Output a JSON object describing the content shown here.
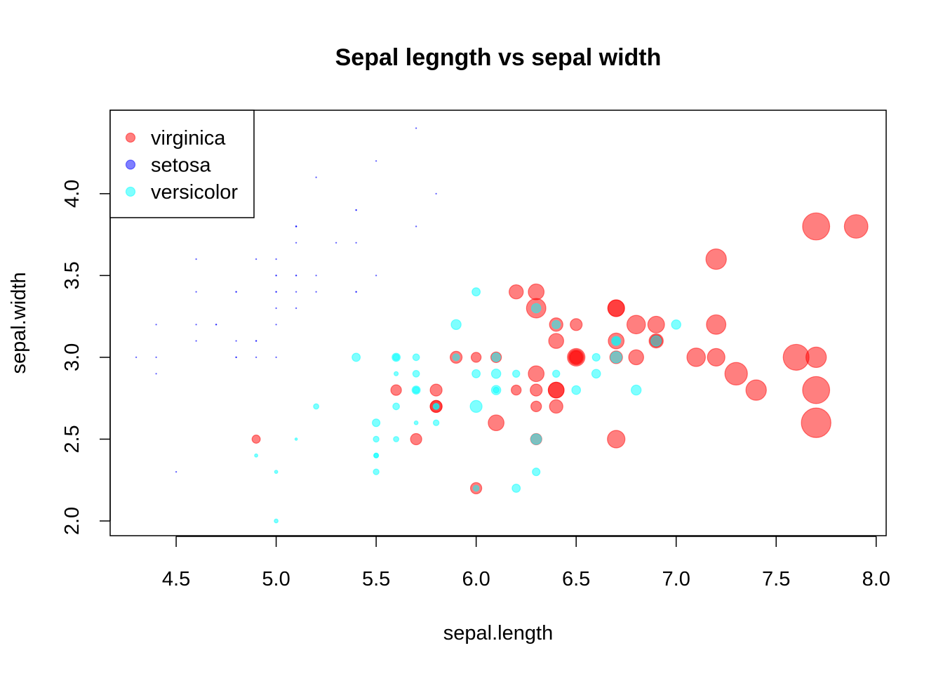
{
  "chart_data": {
    "type": "scatter",
    "title": "Sepal legngth vs sepal width",
    "xlabel": "sepal.length",
    "ylabel": "sepal.width",
    "xlim": [
      4.17,
      8.05
    ],
    "ylim": [
      1.91,
      4.51
    ],
    "xticks": [
      "4.5",
      "5.0",
      "5.5",
      "6.0",
      "6.5",
      "7.0",
      "7.5",
      "8.0"
    ],
    "yticks": [
      "2.0",
      "2.5",
      "3.0",
      "3.5",
      "4.0"
    ],
    "grid": false,
    "legend_position": "top-left",
    "point_size_note": "point size scales with petal size",
    "series": [
      {
        "name": "virginica",
        "color": "#ff0000",
        "opacity": 0.5,
        "points": [
          [
            6.3,
            3.3,
            6.0
          ],
          [
            5.8,
            2.7,
            5.1
          ],
          [
            7.1,
            3.0,
            5.9
          ],
          [
            6.3,
            2.9,
            5.6
          ],
          [
            6.5,
            3.0,
            5.8
          ],
          [
            7.6,
            3.0,
            6.6
          ],
          [
            4.9,
            2.5,
            4.5
          ],
          [
            7.3,
            2.9,
            6.3
          ],
          [
            6.7,
            2.5,
            5.8
          ],
          [
            7.2,
            3.6,
            6.1
          ],
          [
            6.5,
            3.2,
            5.1
          ],
          [
            6.4,
            2.7,
            5.3
          ],
          [
            6.8,
            3.0,
            5.5
          ],
          [
            5.7,
            2.5,
            5.0
          ],
          [
            5.8,
            2.8,
            5.1
          ],
          [
            6.4,
            3.2,
            5.3
          ],
          [
            6.5,
            3.0,
            5.5
          ],
          [
            7.7,
            3.8,
            6.7
          ],
          [
            7.7,
            2.6,
            6.9
          ],
          [
            6.0,
            2.2,
            5.0
          ],
          [
            6.9,
            3.2,
            5.7
          ],
          [
            5.6,
            2.8,
            4.9
          ],
          [
            7.7,
            2.8,
            6.7
          ],
          [
            6.3,
            2.7,
            4.9
          ],
          [
            6.7,
            3.3,
            5.7
          ],
          [
            7.2,
            3.2,
            6.0
          ],
          [
            6.2,
            2.8,
            4.8
          ],
          [
            6.1,
            3.0,
            4.9
          ],
          [
            6.4,
            2.8,
            5.6
          ],
          [
            7.2,
            3.0,
            5.8
          ],
          [
            7.4,
            2.8,
            6.1
          ],
          [
            7.9,
            3.8,
            6.4
          ],
          [
            6.4,
            2.8,
            5.6
          ],
          [
            6.3,
            2.8,
            5.1
          ],
          [
            6.1,
            2.6,
            5.6
          ],
          [
            7.7,
            3.0,
            6.1
          ],
          [
            6.3,
            3.4,
            5.6
          ],
          [
            6.4,
            3.1,
            5.5
          ],
          [
            6.0,
            3.0,
            4.8
          ],
          [
            6.9,
            3.1,
            5.4
          ],
          [
            6.7,
            3.1,
            5.6
          ],
          [
            6.9,
            3.1,
            5.1
          ],
          [
            5.8,
            2.7,
            5.1
          ],
          [
            6.8,
            3.2,
            5.9
          ],
          [
            6.7,
            3.3,
            5.7
          ],
          [
            6.7,
            3.0,
            5.2
          ],
          [
            6.3,
            2.5,
            5.0
          ],
          [
            6.5,
            3.0,
            5.2
          ],
          [
            6.2,
            3.4,
            5.4
          ],
          [
            5.9,
            3.0,
            5.1
          ]
        ]
      },
      {
        "name": "setosa",
        "color": "#0000ff",
        "opacity": 0.5,
        "points": [
          [
            5.1,
            3.5,
            1.4
          ],
          [
            4.9,
            3.0,
            1.4
          ],
          [
            4.7,
            3.2,
            1.3
          ],
          [
            4.6,
            3.1,
            1.5
          ],
          [
            5.0,
            3.6,
            1.4
          ],
          [
            5.4,
            3.9,
            1.7
          ],
          [
            4.6,
            3.4,
            1.4
          ],
          [
            5.0,
            3.4,
            1.5
          ],
          [
            4.4,
            2.9,
            1.4
          ],
          [
            4.9,
            3.1,
            1.5
          ],
          [
            5.4,
            3.7,
            1.5
          ],
          [
            4.8,
            3.4,
            1.6
          ],
          [
            4.8,
            3.0,
            1.4
          ],
          [
            4.3,
            3.0,
            1.1
          ],
          [
            5.8,
            4.0,
            1.2
          ],
          [
            5.7,
            4.4,
            1.5
          ],
          [
            5.4,
            3.9,
            1.3
          ],
          [
            5.1,
            3.5,
            1.4
          ],
          [
            5.7,
            3.8,
            1.7
          ],
          [
            5.1,
            3.8,
            1.5
          ],
          [
            5.4,
            3.4,
            1.7
          ],
          [
            5.1,
            3.7,
            1.5
          ],
          [
            4.6,
            3.6,
            1.0
          ],
          [
            5.1,
            3.3,
            1.7
          ],
          [
            4.8,
            3.4,
            1.9
          ],
          [
            5.0,
            3.0,
            1.6
          ],
          [
            5.0,
            3.4,
            1.6
          ],
          [
            5.2,
            3.5,
            1.5
          ],
          [
            5.2,
            3.4,
            1.4
          ],
          [
            4.7,
            3.2,
            1.6
          ],
          [
            4.8,
            3.1,
            1.6
          ],
          [
            5.4,
            3.4,
            1.5
          ],
          [
            5.2,
            4.1,
            1.5
          ],
          [
            5.5,
            4.2,
            1.4
          ],
          [
            4.9,
            3.1,
            1.5
          ],
          [
            5.0,
            3.2,
            1.2
          ],
          [
            5.5,
            3.5,
            1.3
          ],
          [
            4.9,
            3.6,
            1.4
          ],
          [
            4.4,
            3.0,
            1.3
          ],
          [
            5.1,
            3.4,
            1.5
          ],
          [
            5.0,
            3.5,
            1.3
          ],
          [
            4.5,
            2.3,
            1.3
          ],
          [
            4.4,
            3.2,
            1.3
          ],
          [
            5.0,
            3.5,
            1.6
          ],
          [
            5.1,
            3.8,
            1.9
          ],
          [
            4.8,
            3.0,
            1.4
          ],
          [
            5.1,
            3.8,
            1.6
          ],
          [
            4.6,
            3.2,
            1.4
          ],
          [
            5.3,
            3.7,
            1.5
          ],
          [
            5.0,
            3.3,
            1.4
          ]
        ]
      },
      {
        "name": "versicolor",
        "color": "#00ffff",
        "opacity": 0.5,
        "points": [
          [
            7.0,
            3.2,
            4.7
          ],
          [
            6.4,
            3.2,
            4.5
          ],
          [
            6.9,
            3.1,
            4.9
          ],
          [
            5.5,
            2.3,
            4.0
          ],
          [
            6.5,
            2.8,
            4.6
          ],
          [
            5.7,
            2.8,
            4.5
          ],
          [
            6.3,
            3.3,
            4.7
          ],
          [
            4.9,
            2.4,
            3.3
          ],
          [
            6.6,
            2.9,
            4.6
          ],
          [
            5.2,
            2.7,
            3.9
          ],
          [
            5.0,
            2.0,
            3.5
          ],
          [
            5.9,
            3.0,
            4.2
          ],
          [
            6.0,
            2.2,
            4.0
          ],
          [
            6.1,
            2.9,
            4.7
          ],
          [
            5.6,
            2.9,
            3.6
          ],
          [
            6.7,
            3.1,
            4.4
          ],
          [
            5.6,
            3.0,
            4.5
          ],
          [
            5.8,
            2.7,
            4.1
          ],
          [
            6.2,
            2.2,
            4.5
          ],
          [
            5.6,
            2.5,
            3.9
          ],
          [
            5.9,
            3.2,
            4.8
          ],
          [
            6.1,
            2.8,
            4.0
          ],
          [
            6.3,
            2.5,
            4.9
          ],
          [
            6.1,
            2.8,
            4.7
          ],
          [
            6.4,
            2.9,
            4.3
          ],
          [
            6.6,
            3.0,
            4.4
          ],
          [
            6.8,
            2.8,
            4.8
          ],
          [
            6.7,
            3.0,
            5.0
          ],
          [
            6.0,
            2.9,
            4.5
          ],
          [
            5.7,
            2.6,
            3.5
          ],
          [
            5.5,
            2.4,
            3.8
          ],
          [
            5.5,
            2.4,
            3.7
          ],
          [
            5.8,
            2.7,
            3.9
          ],
          [
            6.0,
            2.7,
            5.1
          ],
          [
            5.4,
            3.0,
            4.5
          ],
          [
            6.0,
            3.4,
            4.5
          ],
          [
            6.7,
            3.1,
            4.7
          ],
          [
            6.3,
            2.3,
            4.4
          ],
          [
            5.6,
            3.0,
            4.1
          ],
          [
            5.5,
            2.5,
            4.0
          ],
          [
            5.5,
            2.6,
            4.4
          ],
          [
            6.1,
            3.0,
            4.6
          ],
          [
            5.8,
            2.6,
            4.0
          ],
          [
            5.0,
            2.3,
            3.3
          ],
          [
            5.6,
            2.7,
            4.2
          ],
          [
            5.7,
            3.0,
            4.2
          ],
          [
            5.7,
            2.9,
            4.2
          ],
          [
            6.2,
            2.9,
            4.3
          ],
          [
            5.1,
            2.5,
            3.0
          ],
          [
            5.7,
            2.8,
            4.1
          ]
        ]
      }
    ]
  }
}
